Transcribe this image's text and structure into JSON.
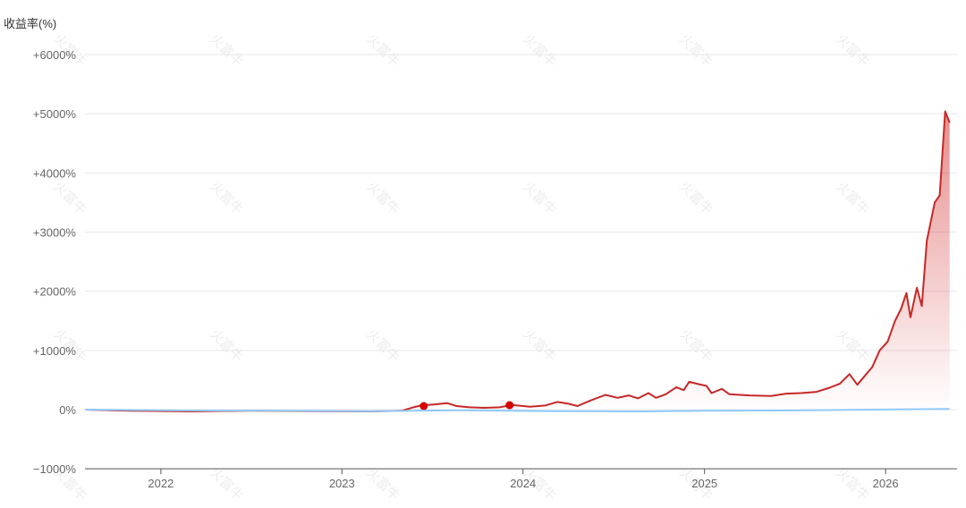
{
  "chart_data": {
    "type": "line",
    "ylabel": "收益率(%)",
    "xlabel": "",
    "ylim": [
      -1000,
      6500
    ],
    "y_ticks": [
      {
        "value": 6000,
        "label": "+6000%"
      },
      {
        "value": 5000,
        "label": "+5000%"
      },
      {
        "value": 4000,
        "label": "+4000%"
      },
      {
        "value": 3000,
        "label": "+3000%"
      },
      {
        "value": 2000,
        "label": "+2000%"
      },
      {
        "value": 1000,
        "label": "+1000%"
      },
      {
        "value": 0,
        "label": "0%"
      },
      {
        "value": -1000,
        "label": "−1000%"
      }
    ],
    "xlim": [
      "2021-08-01",
      "2026-05-25"
    ],
    "x_ticks": [
      {
        "value": "2022-01-01",
        "label": "2022"
      },
      {
        "value": "2023-01-01",
        "label": "2023"
      },
      {
        "value": "2024-01-01",
        "label": "2024"
      },
      {
        "value": "2025-01-01",
        "label": "2025"
      },
      {
        "value": "2026-01-01",
        "label": "2026"
      }
    ],
    "grid": true,
    "watermark": "火富牛",
    "series": [
      {
        "color": "#c62828",
        "fill": "gradient",
        "points": [
          [
            "2021-08-01",
            0
          ],
          [
            "2021-11-01",
            -20
          ],
          [
            "2022-03-01",
            -30
          ],
          [
            "2022-07-01",
            -20
          ],
          [
            "2022-11-01",
            -25
          ],
          [
            "2023-03-01",
            -30
          ],
          [
            "2023-05-01",
            -20
          ],
          [
            "2023-05-25",
            40
          ],
          [
            "2023-06-10",
            70
          ],
          [
            "2023-07-10",
            90
          ],
          [
            "2023-08-01",
            110
          ],
          [
            "2023-08-20",
            60
          ],
          [
            "2023-09-15",
            40
          ],
          [
            "2023-10-15",
            30
          ],
          [
            "2023-11-15",
            40
          ],
          [
            "2023-12-10",
            80
          ],
          [
            "2024-01-15",
            50
          ],
          [
            "2024-02-15",
            70
          ],
          [
            "2024-03-10",
            130
          ],
          [
            "2024-04-01",
            100
          ],
          [
            "2024-04-20",
            60
          ],
          [
            "2024-05-15",
            150
          ],
          [
            "2024-06-15",
            250
          ],
          [
            "2024-07-10",
            200
          ],
          [
            "2024-08-01",
            240
          ],
          [
            "2024-08-20",
            190
          ],
          [
            "2024-09-10",
            280
          ],
          [
            "2024-09-25",
            200
          ],
          [
            "2024-10-15",
            260
          ],
          [
            "2024-11-05",
            380
          ],
          [
            "2024-11-20",
            330
          ],
          [
            "2024-12-01",
            470
          ],
          [
            "2024-12-20",
            430
          ],
          [
            "2025-01-05",
            400
          ],
          [
            "2025-01-15",
            280
          ],
          [
            "2025-02-05",
            350
          ],
          [
            "2025-02-20",
            260
          ],
          [
            "2025-04-01",
            240
          ],
          [
            "2025-05-15",
            230
          ],
          [
            "2025-06-15",
            270
          ],
          [
            "2025-07-15",
            280
          ],
          [
            "2025-08-15",
            300
          ],
          [
            "2025-09-10",
            370
          ],
          [
            "2025-10-01",
            440
          ],
          [
            "2025-10-20",
            600
          ],
          [
            "2025-11-05",
            420
          ],
          [
            "2025-11-20",
            570
          ],
          [
            "2025-12-05",
            720
          ],
          [
            "2025-12-20",
            1000
          ],
          [
            "2026-01-05",
            1150
          ],
          [
            "2026-01-20",
            1500
          ],
          [
            "2026-02-01",
            1700
          ],
          [
            "2026-02-12",
            1970
          ],
          [
            "2026-02-20",
            1560
          ],
          [
            "2026-03-05",
            2060
          ],
          [
            "2026-03-15",
            1750
          ],
          [
            "2026-03-25",
            2850
          ],
          [
            "2026-04-10",
            3500
          ],
          [
            "2026-04-20",
            3620
          ],
          [
            "2026-05-01",
            5040
          ],
          [
            "2026-05-10",
            4850
          ]
        ],
        "markers": [
          [
            "2023-06-15",
            60
          ],
          [
            "2023-12-05",
            75
          ]
        ]
      },
      {
        "color": "#90caf9",
        "fill": "none",
        "points": [
          [
            "2021-08-01",
            0
          ],
          [
            "2022-03-01",
            -15
          ],
          [
            "2022-09-01",
            -20
          ],
          [
            "2023-03-01",
            -25
          ],
          [
            "2023-09-01",
            -10
          ],
          [
            "2024-03-01",
            -25
          ],
          [
            "2024-09-01",
            -30
          ],
          [
            "2025-01-01",
            -20
          ],
          [
            "2025-06-01",
            -15
          ],
          [
            "2025-12-01",
            0
          ],
          [
            "2026-05-10",
            10
          ]
        ]
      }
    ]
  }
}
